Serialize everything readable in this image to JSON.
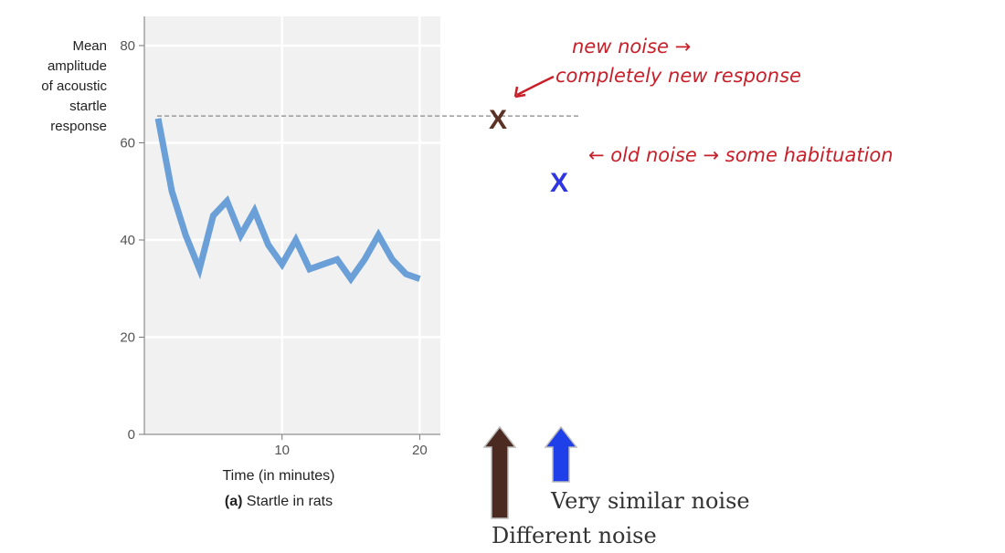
{
  "chart_data": {
    "type": "line",
    "title": "",
    "caption_prefix": "(a)",
    "caption_text": " Startle in rats",
    "xlabel": "Time (in minutes)",
    "ylabel_lines": [
      "Mean",
      "amplitude",
      "of acoustic",
      "startle",
      "response"
    ],
    "xlim": [
      0,
      21.5
    ],
    "ylim": [
      0,
      86
    ],
    "xticks": [
      10,
      20
    ],
    "yticks": [
      0,
      20,
      40,
      60,
      80
    ],
    "grid": true,
    "series": [
      {
        "name": "startle",
        "color": "#6a9fd8",
        "x": [
          1,
          2,
          3,
          4,
          5,
          6,
          7,
          8,
          9,
          10,
          11,
          12,
          13,
          14,
          15,
          16,
          17,
          18,
          19,
          20
        ],
        "values": [
          65,
          50,
          41,
          34,
          45,
          48,
          41,
          46,
          39,
          35,
          40,
          34,
          35,
          36,
          32,
          36,
          41,
          36,
          33,
          32
        ]
      }
    ]
  },
  "annotations": {
    "reference_line_value": 65.5,
    "new_noise": {
      "marker": "X",
      "color": "#5a3226",
      "value": 65,
      "note_line1": "new noise →",
      "note_line2": "completely new response"
    },
    "old_noise": {
      "marker": "X",
      "color": "#2f35e0",
      "value": 52,
      "note": "← old noise → some habituation"
    },
    "handwriting_color": "#c8202a"
  },
  "arrows": {
    "different": {
      "label": "Different noise",
      "color": "#4b2a22"
    },
    "similar": {
      "label": "Very similar noise",
      "color": "#1f3fe8"
    }
  }
}
